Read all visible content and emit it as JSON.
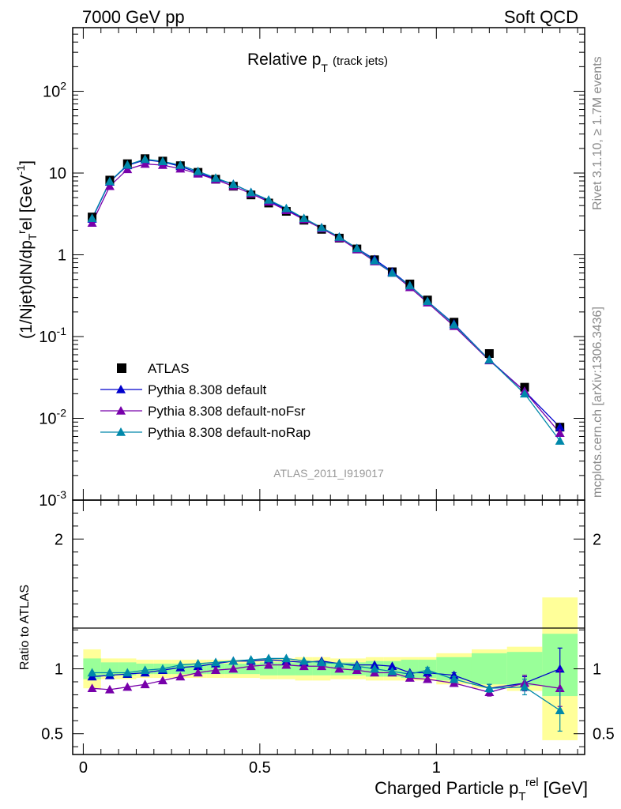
{
  "header": {
    "left": "7000 GeV pp",
    "right": "Soft QCD"
  },
  "side": {
    "rivet": "Rivet 3.1.10, ≥ 1.7M events",
    "mcplots": "mcplots.cern.ch [arXiv:1306.3436]"
  },
  "chart_data": [
    {
      "type": "scatter",
      "title": "Relative p_T (track jets)",
      "title_main": "Relative p",
      "title_sub": "T",
      "title_extra": "(track jets)",
      "analysis_label": "ATLAS_2011_I919017",
      "ylabel": "(1/Njet)dN/dp_T^rel [GeV^-1]",
      "yscale": "log",
      "ylim": [
        0.001,
        600
      ],
      "xlim": [
        -0.03,
        1.42
      ],
      "ytick_labels": [
        "10^-3",
        "10^-2",
        "10^-1",
        "1",
        "10",
        "10^2"
      ],
      "legend_position": "lower-left",
      "x": [
        0.025,
        0.075,
        0.125,
        0.175,
        0.225,
        0.275,
        0.325,
        0.375,
        0.425,
        0.475,
        0.525,
        0.575,
        0.625,
        0.675,
        0.725,
        0.775,
        0.825,
        0.875,
        0.925,
        0.975,
        1.05,
        1.15,
        1.25,
        1.35
      ],
      "series": [
        {
          "name": "ATLAS",
          "color": "#000000",
          "marker": "square",
          "values": [
            2.9,
            8.2,
            13.0,
            15.0,
            14.0,
            12.3,
            10.2,
            8.4,
            6.9,
            5.4,
            4.3,
            3.4,
            2.65,
            2.05,
            1.6,
            1.18,
            0.87,
            0.62,
            0.44,
            0.28,
            0.15,
            0.062,
            0.024,
            0.0078
          ]
        },
        {
          "name": "Pythia 8.308 default",
          "color": "#0000cc",
          "marker": "triangle",
          "values": [
            2.75,
            7.8,
            12.4,
            14.5,
            13.7,
            12.1,
            10.1,
            8.5,
            7.3,
            5.8,
            4.6,
            3.6,
            2.75,
            2.15,
            1.65,
            1.2,
            0.88,
            0.62,
            0.42,
            0.27,
            0.143,
            0.052,
            0.0215,
            0.0078
          ]
        },
        {
          "name": "Pythia 8.308 default-noFsr",
          "color": "#7700aa",
          "marker": "triangle",
          "values": [
            2.45,
            6.9,
            11.1,
            12.9,
            12.5,
            11.3,
            9.8,
            8.3,
            6.9,
            5.6,
            4.45,
            3.5,
            2.7,
            2.1,
            1.6,
            1.16,
            0.83,
            0.6,
            0.4,
            0.26,
            0.134,
            0.051,
            0.0215,
            0.0066
          ]
        },
        {
          "name": "Pythia 8.308 default-noRap",
          "color": "#0088aa",
          "marker": "triangle",
          "values": [
            2.8,
            7.9,
            12.6,
            14.8,
            13.9,
            12.5,
            10.5,
            8.7,
            7.3,
            5.8,
            4.7,
            3.7,
            2.8,
            2.15,
            1.65,
            1.2,
            0.85,
            0.6,
            0.42,
            0.27,
            0.14,
            0.052,
            0.02,
            0.0053
          ]
        }
      ]
    },
    {
      "type": "scatter",
      "xlabel": "Charged Particle p_T^rel [GeV]",
      "xlabel_parts": [
        "Charged Particle p",
        "T",
        "rel",
        " [GeV]"
      ],
      "ylabel": "Ratio to ATLAS",
      "ylim": [
        0.34,
        2.3
      ],
      "xlim": [
        -0.03,
        1.42
      ],
      "xtick_labels": [
        "0",
        "0.5",
        "1"
      ],
      "ytick_labels": [
        "0.5",
        "1",
        "2"
      ],
      "x": [
        0.025,
        0.075,
        0.125,
        0.175,
        0.225,
        0.275,
        0.325,
        0.375,
        0.425,
        0.475,
        0.525,
        0.575,
        0.625,
        0.675,
        0.725,
        0.775,
        0.825,
        0.875,
        0.925,
        0.975,
        1.05,
        1.15,
        1.25,
        1.35
      ],
      "bin_edges": [
        0.0,
        0.05,
        0.1,
        0.15,
        0.2,
        0.25,
        0.3,
        0.35,
        0.4,
        0.45,
        0.5,
        0.55,
        0.6,
        0.65,
        0.7,
        0.75,
        0.8,
        0.85,
        0.9,
        0.95,
        1.0,
        1.1,
        1.2,
        1.3,
        1.4
      ],
      "band_yellow_halfwidth": [
        0.15,
        0.08,
        0.08,
        0.07,
        0.07,
        0.07,
        0.07,
        0.07,
        0.07,
        0.07,
        0.08,
        0.08,
        0.09,
        0.09,
        0.08,
        0.08,
        0.09,
        0.09,
        0.09,
        0.09,
        0.12,
        0.15,
        0.17,
        0.55
      ],
      "band_green_halfwidth": [
        0.08,
        0.05,
        0.05,
        0.04,
        0.04,
        0.04,
        0.04,
        0.04,
        0.04,
        0.04,
        0.05,
        0.05,
        0.05,
        0.05,
        0.05,
        0.05,
        0.06,
        0.06,
        0.07,
        0.07,
        0.09,
        0.12,
        0.13,
        0.24
      ],
      "band_green_center": [
        1.0,
        1.0,
        1.0,
        1.0,
        1.0,
        1.0,
        1.0,
        1.0,
        1.0,
        1.0,
        1.0,
        1.0,
        1.0,
        1.0,
        1.0,
        1.0,
        1.0,
        1.0,
        1.0,
        1.0,
        1.0,
        1.0,
        1.0,
        1.03
      ],
      "series": [
        {
          "name": "Pythia 8.308 default",
          "color": "#0000cc",
          "values": [
            0.94,
            0.95,
            0.96,
            0.97,
            0.99,
            1.01,
            1.02,
            1.04,
            1.06,
            1.06,
            1.07,
            1.06,
            1.05,
            1.06,
            1.04,
            1.03,
            1.03,
            1.02,
            0.97,
            0.97,
            0.95,
            0.85,
            0.89,
            1.0
          ],
          "errors": [
            0,
            0,
            0,
            0,
            0,
            0,
            0,
            0,
            0,
            0,
            0,
            0,
            0,
            0,
            0,
            0,
            0,
            0,
            0,
            0.02,
            0.02,
            0.03,
            0.05,
            0.16
          ]
        },
        {
          "name": "Pythia 8.308 default-noFsr",
          "color": "#7700aa",
          "values": [
            0.85,
            0.84,
            0.86,
            0.88,
            0.91,
            0.94,
            0.97,
            0.99,
            1.0,
            1.02,
            1.03,
            1.03,
            1.02,
            1.02,
            1.0,
            0.99,
            0.97,
            0.97,
            0.93,
            0.92,
            0.89,
            0.82,
            0.89,
            0.85
          ],
          "errors": [
            0,
            0,
            0,
            0,
            0,
            0,
            0,
            0,
            0,
            0,
            0,
            0,
            0,
            0,
            0,
            0,
            0,
            0,
            0,
            0.02,
            0.02,
            0.03,
            0.06,
            0.14
          ]
        },
        {
          "name": "Pythia 8.308 default-noRap",
          "color": "#0088aa",
          "values": [
            0.97,
            0.97,
            0.97,
            0.99,
            1.0,
            1.03,
            1.04,
            1.05,
            1.06,
            1.07,
            1.08,
            1.08,
            1.06,
            1.05,
            1.04,
            1.02,
            1.0,
            0.98,
            0.96,
            0.99,
            0.92,
            0.85,
            0.86,
            0.68
          ],
          "errors": [
            0,
            0,
            0,
            0,
            0,
            0,
            0,
            0,
            0,
            0,
            0,
            0,
            0,
            0,
            0,
            0,
            0,
            0,
            0,
            0.02,
            0.02,
            0.03,
            0.06,
            0.16
          ]
        }
      ]
    }
  ]
}
